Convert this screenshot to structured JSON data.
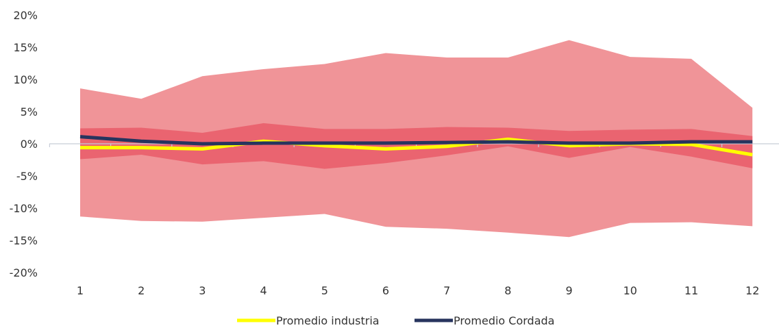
{
  "chart_data": {
    "type": "area",
    "categories": [
      "1",
      "2",
      "3",
      "4",
      "5",
      "6",
      "7",
      "8",
      "9",
      "10",
      "11",
      "12"
    ],
    "ylim": [
      -20,
      20
    ],
    "yticks": [
      20,
      15,
      10,
      5,
      0,
      -5,
      -10,
      -15,
      -20
    ],
    "ytick_labels": [
      "20%",
      "15%",
      "10%",
      "5%",
      "0%",
      "-5%",
      "-10%",
      "-15%",
      "-20%"
    ],
    "grid": false,
    "legend_position": "bottom",
    "bands": [
      {
        "role": "outer-range",
        "color": "#f09498",
        "upper": [
          8.6,
          7.0,
          10.5,
          11.6,
          12.4,
          14.1,
          13.4,
          13.4,
          16.1,
          13.5,
          13.2,
          5.6
        ],
        "lower": [
          -11.3,
          -12.0,
          -12.1,
          -11.5,
          -10.9,
          -12.9,
          -13.2,
          -13.8,
          -14.5,
          -12.3,
          -12.2,
          -12.8
        ]
      },
      {
        "role": "inner-range",
        "color": "#ea6470",
        "upper": [
          2.4,
          2.5,
          1.7,
          3.2,
          2.3,
          2.3,
          2.6,
          2.5,
          2.0,
          2.2,
          2.3,
          1.2
        ],
        "lower": [
          -2.4,
          -1.7,
          -3.2,
          -2.7,
          -3.9,
          -3.0,
          -1.8,
          -0.4,
          -2.2,
          -0.5,
          -2.0,
          -3.8
        ]
      }
    ],
    "series": [
      {
        "name": "Promedio industria",
        "color": "#ffff00",
        "values": [
          -0.6,
          -0.6,
          -0.8,
          0.4,
          -0.3,
          -0.8,
          -0.4,
          0.7,
          -0.3,
          0.0,
          -0.1,
          -1.7
        ]
      },
      {
        "name": "Promedio Cordada",
        "color": "#27345e",
        "values": [
          1.1,
          0.4,
          0.0,
          0.1,
          0.1,
          0.1,
          0.2,
          0.3,
          0.1,
          0.1,
          0.3,
          0.3
        ]
      }
    ]
  }
}
